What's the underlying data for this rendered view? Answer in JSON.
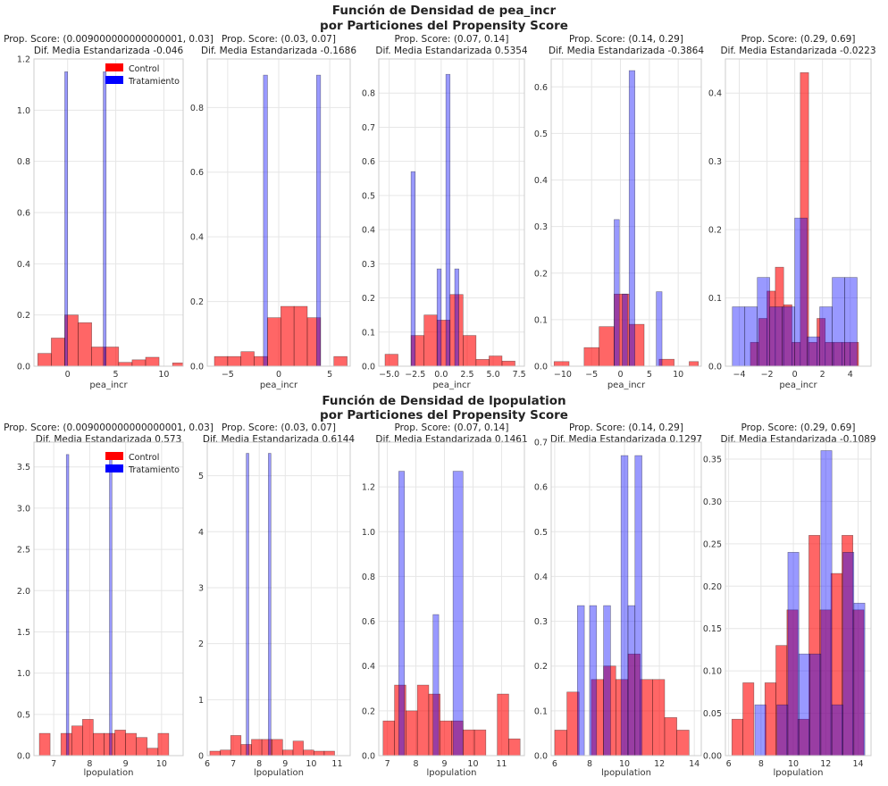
{
  "colors": {
    "control": "#ff0000",
    "treatment": "#0000ff",
    "grid": "#e6e6e6",
    "axis": "#cccccc"
  },
  "legend": {
    "control": "Control",
    "treatment": "Tratamiento",
    "placement": "upper-center of first panel"
  },
  "chart_data": [
    {
      "type": "histogram",
      "title": "Función de Densidad de pea_incr",
      "subtitle": "por Particiones del Propensity Score",
      "xlabel": "pea_incr",
      "panels": [
        {
          "title": "Prop. Score: (0.009000000000000001, 0.03]",
          "smd": "Dif. Media Estandarizada -0.046",
          "xlim": [
            -3.5,
            12
          ],
          "ylim": [
            0,
            1.2
          ],
          "xticks": [
            0,
            5,
            10
          ],
          "xtick_labels": [
            "0",
            "5",
            "10"
          ],
          "yticks": [
            0,
            0.2,
            0.4,
            0.6,
            0.8,
            1.0,
            1.2
          ],
          "ytick_labels": [
            "0.0",
            "0.2",
            "0.4",
            "0.6",
            "0.8",
            "1.0",
            "1.2"
          ],
          "control": {
            "edges": [
              -3.1,
              -1.7,
              -0.3,
              1.1,
              2.5,
              3.9,
              5.3,
              6.7,
              8.1,
              9.5,
              10.9,
              12.0
            ],
            "heights": [
              0.05,
              0.11,
              0.2,
              0.17,
              0.075,
              0.075,
              0.015,
              0.025,
              0.035,
              0.0,
              0.013
            ]
          },
          "treatment": {
            "edges": [
              -0.3,
              0.0,
              3.7,
              4.0
            ],
            "heights": [
              1.15,
              0,
              1.15
            ]
          }
        },
        {
          "title": "Prop. Score: (0.03, 0.07]",
          "smd": "Dif. Media Estandarizada -0.1686",
          "xlim": [
            -7,
            7
          ],
          "ylim": [
            0,
            0.95
          ],
          "xticks": [
            -5,
            0,
            5
          ],
          "xtick_labels": [
            "−5",
            "0",
            "5"
          ],
          "yticks": [
            0,
            0.2,
            0.4,
            0.6,
            0.8
          ],
          "ytick_labels": [
            "0.0",
            "0.2",
            "0.4",
            "0.6",
            "0.8"
          ],
          "control": {
            "edges": [
              -6.3,
              -5.0,
              -3.7,
              -2.4,
              -1.1,
              0.2,
              1.5,
              2.8,
              4.1,
              5.4,
              6.7
            ],
            "heights": [
              0.03,
              0.03,
              0.045,
              0.03,
              0.15,
              0.185,
              0.185,
              0.15,
              0.0,
              0.03
            ]
          },
          "treatment": {
            "edges": [
              -1.5,
              -1.1,
              3.7,
              4.1
            ],
            "heights": [
              0.9,
              0,
              0.9
            ]
          }
        },
        {
          "title": "Prop. Score: (0.07, 0.14]",
          "smd": "Dif. Media Estandarizada 0.5354",
          "xlim": [
            -6,
            8
          ],
          "ylim": [
            0,
            0.9
          ],
          "xticks": [
            -5,
            -2.5,
            0,
            2.5,
            5,
            7.5
          ],
          "xtick_labels": [
            "−5.0",
            "−2.5",
            "0.0",
            "2.5",
            "5.0",
            "7.5"
          ],
          "yticks": [
            0,
            0.1,
            0.2,
            0.3,
            0.4,
            0.5,
            0.6,
            0.7,
            0.8
          ],
          "ytick_labels": [
            "0.0",
            "0.1",
            "0.2",
            "0.3",
            "0.4",
            "0.5",
            "0.6",
            "0.7",
            "0.8"
          ],
          "control": {
            "edges": [
              -5.4,
              -4.15,
              -2.9,
              -1.65,
              -0.4,
              0.85,
              2.1,
              3.35,
              4.6,
              5.85,
              7.1,
              8.0
            ],
            "heights": [
              0.035,
              0.0,
              0.09,
              0.15,
              0.135,
              0.21,
              0.09,
              0.02,
              0.03,
              0.015,
              0.0
            ]
          },
          "treatment": {
            "edges": [
              -2.9,
              -2.5,
              -0.4,
              0,
              0.45,
              0.85,
              1.3,
              1.7
            ],
            "heights": [
              0.57,
              0,
              0.285,
              0,
              0.855,
              0,
              0.285
            ]
          }
        },
        {
          "title": "Prop. Score: (0.14, 0.29]",
          "smd": "Dif. Media Estandarizada -0.3864",
          "xlim": [
            -12,
            14
          ],
          "ylim": [
            0,
            0.66
          ],
          "xticks": [
            -10,
            -5,
            0,
            5,
            10
          ],
          "xtick_labels": [
            "−10",
            "−5",
            "0",
            "5",
            "10"
          ],
          "yticks": [
            0,
            0.1,
            0.2,
            0.3,
            0.4,
            0.5,
            0.6
          ],
          "ytick_labels": [
            "0.0",
            "0.1",
            "0.2",
            "0.3",
            "0.4",
            "0.5",
            "0.6"
          ],
          "control": {
            "edges": [
              -11.5,
              -8.9,
              -6.3,
              -3.7,
              -1.1,
              1.5,
              4.1,
              6.7,
              9.3,
              11.9,
              13.5
            ],
            "heights": [
              0.01,
              0.0,
              0.04,
              0.085,
              0.155,
              0.09,
              0.0,
              0.015,
              0.0,
              0.01
            ]
          },
          "treatment": {
            "edges": [
              -1.1,
              -0.2,
              0.3,
              1.2,
              1.5,
              2.5,
              6.2,
              7.2
            ],
            "heights": [
              0.315,
              0,
              0.155,
              0,
              0.635,
              0,
              0.16
            ]
          }
        },
        {
          "title": "Prop. Score: (0.29, 0.69]",
          "smd": "Dif. Media Estandarizada -0.0223",
          "xlim": [
            -5,
            5.5
          ],
          "ylim": [
            0,
            0.45
          ],
          "xticks": [
            -4,
            -2,
            0,
            2,
            4
          ],
          "xtick_labels": [
            "−4",
            "−2",
            "0",
            "2",
            "4"
          ],
          "yticks": [
            0,
            0.1,
            0.2,
            0.3,
            0.4
          ],
          "ytick_labels": [
            "0.0",
            "0.1",
            "0.2",
            "0.3",
            "0.4"
          ],
          "control": {
            "edges": [
              -3.2,
              -2.6,
              -2.0,
              -1.4,
              -0.8,
              -0.2,
              0.4,
              1.0,
              1.6,
              2.2,
              2.8,
              3.4,
              4.0,
              4.6
            ],
            "heights": [
              0.035,
              0.07,
              0.11,
              0.145,
              0.09,
              0.035,
              0.43,
              0.035,
              0.07,
              0.035,
              0.035,
              0.035,
              0.035
            ]
          },
          "treatment": {
            "edges": [
              -4.5,
              -3.6,
              -2.7,
              -1.8,
              -0.9,
              0,
              0.9,
              1.8,
              2.7,
              3.6,
              4.5
            ],
            "heights": [
              0.087,
              0.087,
              0.13,
              0.087,
              0.087,
              0.217,
              0.043,
              0.087,
              0.13,
              0.13,
              0.043
            ]
          }
        }
      ]
    },
    {
      "type": "histogram",
      "title": "Función de Densidad de lpopulation",
      "subtitle": "por Particiones del Propensity Score",
      "xlabel": "lpopulation",
      "panels": [
        {
          "title": "Prop. Score: (0.009000000000000001, 0.03]",
          "smd": "Dif. Media Estandarizada 0.573",
          "xlim": [
            6.45,
            10.6
          ],
          "ylim": [
            0,
            3.8
          ],
          "xticks": [
            7,
            8,
            9,
            10
          ],
          "xtick_labels": [
            "7",
            "8",
            "9",
            "10"
          ],
          "yticks": [
            0,
            0.5,
            1.0,
            1.5,
            2.0,
            2.5,
            3.0,
            3.5
          ],
          "ytick_labels": [
            "0.0",
            "0.5",
            "1.0",
            "1.5",
            "2.0",
            "2.5",
            "3.0",
            "3.5"
          ],
          "control": {
            "edges": [
              6.6,
              6.9,
              7.2,
              7.5,
              7.8,
              8.1,
              8.4,
              8.7,
              9.0,
              9.3,
              9.6,
              9.9,
              10.2,
              10.5
            ],
            "heights": [
              0.27,
              0.0,
              0.27,
              0.36,
              0.44,
              0.27,
              0.27,
              0.31,
              0.27,
              0.22,
              0.09,
              0.27,
              0.0
            ]
          },
          "treatment": {
            "edges": [
              7.35,
              7.42,
              8.55,
              8.62
            ],
            "heights": [
              3.65,
              0,
              3.65
            ]
          }
        },
        {
          "title": "Prop. Score: (0.03, 0.07]",
          "smd": "Dif. Media Estandarizada 0.6144",
          "xlim": [
            6,
            11.5
          ],
          "ylim": [
            0,
            5.6
          ],
          "xticks": [
            6,
            7,
            8,
            9,
            10,
            11
          ],
          "xtick_labels": [
            "6",
            "7",
            "8",
            "9",
            "10",
            "11"
          ],
          "yticks": [
            0,
            1,
            2,
            3,
            4,
            5
          ],
          "ytick_labels": [
            "0",
            "1",
            "2",
            "3",
            "4",
            "5"
          ],
          "control": {
            "edges": [
              6.1,
              6.5,
              6.9,
              7.3,
              7.7,
              8.1,
              8.5,
              8.9,
              9.3,
              9.7,
              10.1,
              10.5,
              10.9,
              11.3
            ],
            "heights": [
              0.08,
              0.1,
              0.36,
              0.2,
              0.29,
              0.29,
              0.29,
              0.1,
              0.26,
              0.1,
              0.08,
              0.08,
              0.0
            ]
          },
          "treatment": {
            "edges": [
              7.5,
              7.6,
              8.35,
              8.45
            ],
            "heights": [
              5.4,
              0,
              5.4
            ]
          }
        },
        {
          "title": "Prop. Score: (0.07, 0.14]",
          "smd": "Dif. Media Estandarizada 0.1461",
          "xlim": [
            6.7,
            11.8
          ],
          "ylim": [
            0,
            1.4
          ],
          "xticks": [
            7,
            8,
            9,
            10,
            11
          ],
          "xtick_labels": [
            "7",
            "8",
            "9",
            "10",
            "11"
          ],
          "yticks": [
            0,
            0.2,
            0.4,
            0.6,
            0.8,
            1.0,
            1.2
          ],
          "ytick_labels": [
            "0.0",
            "0.2",
            "0.4",
            "0.6",
            "0.8",
            "1.0",
            "1.2"
          ],
          "control": {
            "edges": [
              6.85,
              7.25,
              7.65,
              8.05,
              8.45,
              8.85,
              9.25,
              9.65,
              10.05,
              10.45,
              10.85,
              11.25,
              11.65
            ],
            "heights": [
              0.155,
              0.315,
              0.2,
              0.315,
              0.275,
              0.155,
              0.155,
              0.115,
              0.115,
              0.0,
              0.275,
              0.075
            ]
          },
          "treatment": {
            "edges": [
              7.4,
              7.6,
              8.6,
              8.8,
              9.3,
              9.65
            ],
            "heights": [
              1.27,
              0,
              0.63,
              0,
              1.27
            ]
          }
        },
        {
          "title": "Prop. Score: (0.14, 0.29]",
          "smd": "Dif. Media Estandarizada 0.1297",
          "xlim": [
            5.8,
            14.4
          ],
          "ylim": [
            0,
            0.7
          ],
          "xticks": [
            6,
            8,
            10,
            12,
            14
          ],
          "xtick_labels": [
            "6",
            "8",
            "10",
            "12",
            "14"
          ],
          "yticks": [
            0,
            0.1,
            0.2,
            0.3,
            0.4,
            0.5,
            0.6,
            0.7
          ],
          "ytick_labels": [
            "0.0",
            "0.1",
            "0.2",
            "0.3",
            "0.4",
            "0.5",
            "0.6",
            "0.7"
          ],
          "control": {
            "edges": [
              6.0,
              6.7,
              7.4,
              8.1,
              8.8,
              9.5,
              10.2,
              10.9,
              11.6,
              12.3,
              13.0,
              13.7
            ],
            "heights": [
              0.057,
              0.142,
              0.0,
              0.17,
              0.2,
              0.17,
              0.227,
              0.17,
              0.17,
              0.085,
              0.057
            ]
          },
          "treatment": {
            "edges": [
              7.3,
              7.7,
              8.0,
              8.4,
              8.8,
              9.2,
              9.8,
              10.2,
              10.6,
              11.0
            ],
            "heights": [
              0.335,
              0,
              0.335,
              0,
              0.335,
              0,
              0.67,
              0.335,
              0.67
            ]
          }
        },
        {
          "title": "Prop. Score: (0.29, 0.69]",
          "smd": "Dif. Media Estandarizada -0.1089",
          "xlim": [
            5.8,
            14.8
          ],
          "ylim": [
            0,
            0.37
          ],
          "xticks": [
            6,
            8,
            10,
            12,
            14
          ],
          "xtick_labels": [
            "6",
            "8",
            "10",
            "12",
            "14"
          ],
          "yticks": [
            0,
            0.05,
            0.1,
            0.15,
            0.2,
            0.25,
            0.3,
            0.35
          ],
          "ytick_labels": [
            "0.00",
            "0.05",
            "0.10",
            "0.15",
            "0.20",
            "0.25",
            "0.30",
            "0.35"
          ],
          "control": {
            "edges": [
              6.2,
              6.88,
              7.56,
              8.24,
              8.92,
              9.6,
              10.28,
              10.96,
              11.64,
              12.32,
              13.0,
              13.68,
              14.36
            ],
            "heights": [
              0.043,
              0.086,
              0.0,
              0.086,
              0.13,
              0.172,
              0.043,
              0.26,
              0.172,
              0.215,
              0.26,
              0.172
            ]
          },
          "treatment": {
            "edges": [
              7.62,
              8.3,
              8.98,
              9.66,
              10.34,
              11.02,
              11.7,
              12.38,
              13.06,
              13.74,
              14.42
            ],
            "heights": [
              0.06,
              0.0,
              0.06,
              0.24,
              0.12,
              0.12,
              0.36,
              0.06,
              0.24,
              0.18
            ]
          }
        }
      ]
    }
  ]
}
